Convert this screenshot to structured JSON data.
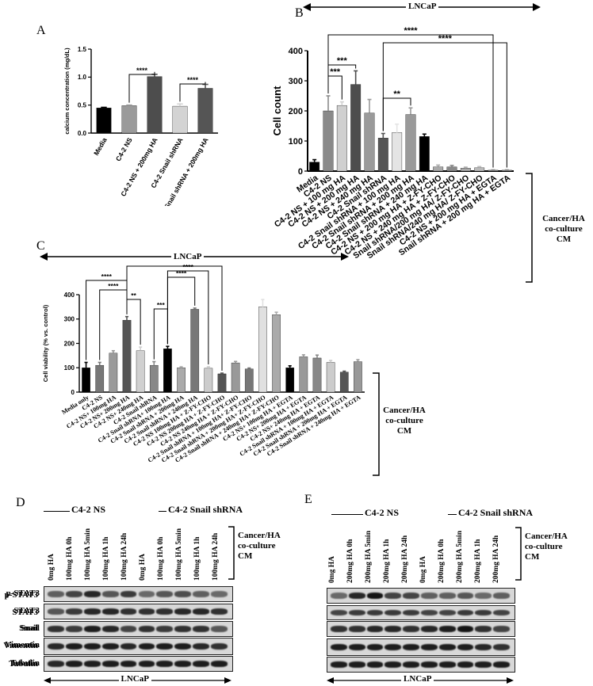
{
  "panels": {
    "A": {
      "letter": "A",
      "chart_data": {
        "type": "bar",
        "ylabel": "calcium concentration (mg/dL)",
        "categories": [
          "Media",
          "C4-2 NS",
          "C4-2 NS + 200mg HA",
          "C4-2 Snail shRNA",
          "C4-2 Snail shRNA + 200mg HA"
        ],
        "values": [
          0.45,
          0.49,
          1.01,
          0.48,
          0.8
        ],
        "errors": [
          0.01,
          0.01,
          0.04,
          0.04,
          0.07
        ],
        "colors": [
          "#000000",
          "#9a9a9a",
          "#4d4d4d",
          "#d3d3d3",
          "#555555"
        ],
        "ylim": [
          0,
          1.5
        ],
        "yticks": [
          "0.0",
          "0.5",
          "1.0",
          "1.5"
        ],
        "significance": [
          {
            "from": 1,
            "to": 2,
            "label": "****"
          },
          {
            "from": 3,
            "to": 4,
            "label": "****"
          }
        ]
      }
    },
    "B": {
      "letter": "B",
      "header": "LNCaP",
      "bracket_label": [
        "Cancer/HA",
        "co-culture",
        "CM"
      ],
      "chart_data": {
        "type": "bar",
        "ylabel": "Cell count",
        "categories": [
          "Media",
          "C4-2 NS",
          "C4-2 NS + 100 mg HA",
          "C4-2 NS + 200 mg HA",
          "C4-2 NS + 240 mg HA",
          "C4-2 Snail shRNA",
          "C4-2 Snail shRNA + 100 mg HA",
          "C4-2 Snail shRNA + 200 mg HA",
          "C4-2 Snail shRNA + 240 mg HA",
          "C4-2 NS + 200 mg HA + Z-FY-CHO",
          "C4-2 NS + 240 mg HA + Z-FY-CHO",
          "Snail shRNA/200 mg HA/ Z-FY-CHO",
          "Snail shRNA/240 mg HA/ Z-FY-CHO",
          "C4-2 NS + 200 mg HA + EGTA",
          "Snail shRNA + 200 mg HA + EGTA"
        ],
        "values": [
          30,
          200,
          218,
          288,
          193,
          110,
          128,
          188,
          115,
          14,
          14,
          10,
          11,
          3,
          3
        ],
        "errors": [
          8,
          50,
          12,
          45,
          45,
          15,
          28,
          22,
          8,
          6,
          5,
          3,
          4,
          1,
          1
        ],
        "colors": [
          "#000000",
          "#8a8a8a",
          "#d0d0d0",
          "#4d4d4d",
          "#9a9a9a",
          "#555555",
          "#e4e4e4",
          "#9a9a9a",
          "#000000",
          "#aaaaaa",
          "#8a8a8a",
          "#aaaaaa",
          "#bbbbbb",
          "#888888",
          "#888888"
        ],
        "ylim": [
          0,
          400
        ],
        "yticks": [
          "0",
          "100",
          "200",
          "300",
          "400"
        ],
        "significance": [
          {
            "from": 1,
            "to": 3,
            "label": "***"
          },
          {
            "from": 1,
            "to": 2,
            "label": "***"
          },
          {
            "from": 5,
            "to": 7,
            "label": "**"
          },
          {
            "from": 1,
            "to": 13,
            "label": "****"
          },
          {
            "from": 5,
            "to": 14,
            "label": "****"
          }
        ]
      }
    },
    "C": {
      "letter": "C",
      "header": "LNCaP",
      "bracket_label": [
        "Cancer/HA",
        "co-culture",
        "CM"
      ],
      "chart_data": {
        "type": "bar",
        "ylabel": "Cell viability (% vs. control)",
        "categories": [
          "Media only",
          "C4-2 NS",
          "C4-2 NS+ 100mg HA",
          "C4-2 NS+ 200mg HA",
          "C4-2 NS+ 240mg HA",
          "C4-2 Snail shRNA",
          "C4-2 Snail shRNA+ 100mg HA",
          "C4-2 Snail shRNA + 200mg HA",
          "C4-2 Snail shRNA + 240mg HA",
          "C4-2 NS 100mg HA + Z-FY-CHO",
          "C4-2 NS 200mg HA + Z-FY-CHO",
          "C4-2 NS 240mg HA + Z-FY-CHO",
          "C4-2 Snail shRNA + 100mg HA+ Z-FY-CHO",
          "C4-2 Snail shRNA + 200mg HA+ Z-FY-CHO",
          "C4-2 Snail shRNA + 240mg HA+ Z-FY-CHO",
          "C4-2 NS+ 100mg HA + EGTA",
          "C4-2 NS+ 200mg HA + EGTA",
          "C4-2 NS+ 240mg HA + EGTA",
          "C4-2 Snail shRNA + 100mg HA + EGTA",
          "C4-2 Snail shRNA + 200mg HA + EGTA",
          "C4-2 Snail shRNA + 240mg HA + EGTA"
        ],
        "values": [
          100,
          110,
          160,
          295,
          170,
          110,
          178,
          100,
          340,
          98,
          75,
          120,
          95,
          350,
          318,
          100,
          145,
          140,
          122,
          82,
          125
        ],
        "errors": [
          22,
          12,
          10,
          15,
          15,
          15,
          10,
          4,
          5,
          6,
          3,
          6,
          4,
          30,
          10,
          8,
          8,
          12,
          8,
          4,
          8
        ],
        "colors": [
          "#000000",
          "#777777",
          "#9a9a9a",
          "#555555",
          "#d0d0d0",
          "#888888",
          "#000000",
          "#aaaaaa",
          "#777777",
          "#cccccc",
          "#555555",
          "#999999",
          "#777777",
          "#e0e0e0",
          "#aaaaaa",
          "#000000",
          "#999999",
          "#888888",
          "#cccccc",
          "#555555",
          "#999999"
        ],
        "ylim": [
          0,
          400
        ],
        "yticks": [
          "0",
          "100",
          "200",
          "300",
          "400"
        ],
        "significance": [
          {
            "from": 1,
            "to": 3,
            "label": "****"
          },
          {
            "from": 0,
            "to": 3,
            "label": "****"
          },
          {
            "from": 3,
            "to": 4,
            "label": "**"
          },
          {
            "from": 5,
            "to": 6,
            "label": "***"
          },
          {
            "from": 6,
            "to": 8,
            "label": "****"
          },
          {
            "from": 6,
            "to": 9,
            "label": "****"
          },
          {
            "from": 3,
            "to": 10,
            "label": "****"
          }
        ]
      }
    },
    "D": {
      "letter": "D",
      "group_left": "C4-2 NS",
      "group_right": "C4-2 Snail shRNA",
      "bracket_label": [
        "Cancer/HA",
        "co-culture",
        "CM"
      ],
      "lanes": [
        "0mg HA",
        "100mg HA 0h",
        "100mg HA 5min",
        "100mg HA 1h",
        "100mg HA 24h",
        "0mg HA",
        "100mg HA 0h",
        "100mg HA 5min",
        "100mg HA 1h",
        "100mg HA 24h"
      ],
      "rows": [
        "p-STAT3",
        "STAT3",
        "Snail",
        "Vimentin",
        "Tubulin"
      ],
      "footer": "LNCaP"
    },
    "E": {
      "letter": "E",
      "group_left": "C4-2 NS",
      "group_right": "C4-2 Snail shRNA",
      "bracket_label": [
        "Cancer/HA",
        "co-culture",
        "CM"
      ],
      "lanes": [
        "0mg HA",
        "200mg HA 0h",
        "200mg HA 5min",
        "200mg HA 1h",
        "200mg HA 24h",
        "0mg HA",
        "200mg HA 0h",
        "200mg HA 5min",
        "200mg HA 1h",
        "200mg HA 24h"
      ],
      "rows": [
        "p-STAT3",
        "STAT3",
        "Snail",
        "Vimentin",
        "Tubulin"
      ],
      "footer": "LNCaP"
    }
  }
}
